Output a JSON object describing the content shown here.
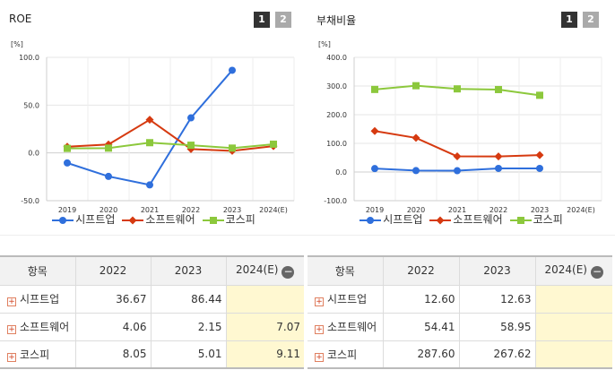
{
  "left": {
    "title": "ROE",
    "pages": [
      "1",
      "2"
    ],
    "unit": "[%]",
    "chart_data": {
      "type": "line",
      "title": "ROE",
      "categories": [
        "2019",
        "2020",
        "2021",
        "2022",
        "2023",
        "2024(E)"
      ],
      "yticks": [
        "100.0",
        "50.0",
        "0.0",
        "-50.0"
      ],
      "ylim": [
        -50,
        100
      ],
      "grid": true,
      "legend_placement": "bottom",
      "series": [
        {
          "name": "시프트업",
          "color": "#2f6fdc",
          "marker": "circle",
          "values": [
            -10.5,
            -24.6,
            -33.5,
            36.67,
            86.44,
            null
          ]
        },
        {
          "name": "소프트웨어",
          "color": "#d63a10",
          "marker": "diamond",
          "values": [
            6.5,
            8.8,
            34.7,
            4.06,
            2.15,
            7.07
          ]
        },
        {
          "name": "코스피",
          "color": "#8cc83c",
          "marker": "square",
          "values": [
            4.7,
            5.0,
            10.7,
            8.05,
            5.01,
            9.11
          ]
        }
      ]
    },
    "table": {
      "headers": [
        "항목",
        "2022",
        "2023",
        "2024(E)"
      ],
      "rows": [
        {
          "name": "시프트업",
          "v2022": "36.67",
          "v2023": "86.44",
          "v2024": ""
        },
        {
          "name": "소프트웨어",
          "v2022": "4.06",
          "v2023": "2.15",
          "v2024": "7.07"
        },
        {
          "name": "코스피",
          "v2022": "8.05",
          "v2023": "5.01",
          "v2024": "9.11"
        }
      ]
    }
  },
  "right": {
    "title": "부채비율",
    "pages": [
      "1",
      "2"
    ],
    "unit": "[%]",
    "chart_data": {
      "type": "line",
      "title": "부채비율",
      "categories": [
        "2019",
        "2020",
        "2021",
        "2022",
        "2023",
        "2024(E)"
      ],
      "yticks": [
        "400.0",
        "300.0",
        "200.0",
        "100.0",
        "0.0",
        "-100.0"
      ],
      "ylim": [
        -100,
        400
      ],
      "grid": true,
      "legend_placement": "bottom",
      "series": [
        {
          "name": "시프트업",
          "color": "#2f6fdc",
          "marker": "circle",
          "values": [
            12.0,
            5.0,
            4.5,
            12.6,
            12.63,
            null
          ]
        },
        {
          "name": "소프트웨어",
          "color": "#d63a10",
          "marker": "diamond",
          "values": [
            143.0,
            119.0,
            54.5,
            54.41,
            58.95,
            null
          ]
        },
        {
          "name": "코스피",
          "color": "#8cc83c",
          "marker": "square",
          "values": [
            288.0,
            301.0,
            290.0,
            287.6,
            267.62,
            null
          ]
        }
      ]
    },
    "table": {
      "headers": [
        "항목",
        "2022",
        "2023",
        "2024(E)"
      ],
      "rows": [
        {
          "name": "시프트업",
          "v2022": "12.60",
          "v2023": "12.63",
          "v2024": ""
        },
        {
          "name": "소프트웨어",
          "v2022": "54.41",
          "v2023": "58.95",
          "v2024": ""
        },
        {
          "name": "코스피",
          "v2022": "287.60",
          "v2023": "267.62",
          "v2024": ""
        }
      ]
    }
  },
  "icons": {
    "expand": "plus-box-icon",
    "collapse": "minus-circle-icon"
  }
}
